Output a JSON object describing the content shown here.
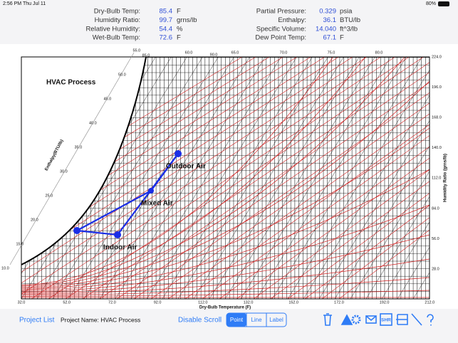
{
  "status_bar": {
    "time": "2:56 PM",
    "date": "Thu Jul 11",
    "battery": "80%"
  },
  "readings": {
    "left": [
      {
        "label": "Dry-Bulb Temp:",
        "value": "85.4",
        "unit": "F"
      },
      {
        "label": "Humidity Ratio:",
        "value": "99.7",
        "unit": "grns/lb"
      },
      {
        "label": "Relative Humidity:",
        "value": "54.4",
        "unit": "%"
      },
      {
        "label": "Wet-Bulb Temp:",
        "value": "72.6",
        "unit": "F"
      }
    ],
    "right": [
      {
        "label": "Partial Pressure:",
        "value": "0.329",
        "unit": "psia"
      },
      {
        "label": "Enthalpy:",
        "value": "36.1",
        "unit": "BTU/lb"
      },
      {
        "label": "Specific Volume:",
        "value": "14.040",
        "unit": "ft^3/lb"
      },
      {
        "label": "Dew Point Temp:",
        "value": "67.1",
        "unit": "F"
      }
    ]
  },
  "chart": {
    "title": "HVAC Process",
    "x_axis_label": "Dry-Bulb Temperature (F)",
    "y_axis_label": "Humidity Ratio (grns/lb)",
    "enthalpy_label": "Enthalpy(BTU/lb)",
    "x_ticks": [
      "32.0",
      "52.0",
      "72.0",
      "92.0",
      "112.0",
      "132.0",
      "152.0",
      "172.0",
      "192.0",
      "212.0"
    ],
    "y_ticks": [
      "28.0",
      "56.0",
      "84.0",
      "112.0",
      "140.0",
      "168.0",
      "196.0",
      "224.0"
    ],
    "enthalpy_ticks": [
      "10.0",
      "15.0",
      "20.0",
      "25.0",
      "30.0",
      "35.0",
      "40.0",
      "45.0",
      "50.0",
      "55.0"
    ],
    "top_labels": [
      "85.0",
      "60.0",
      "90.0",
      "65.0",
      "70.0",
      "75.0",
      "80.0"
    ],
    "points": [
      {
        "label": "Outdoor Air"
      },
      {
        "label": "Mixed Air"
      },
      {
        "label": "Indoor Air"
      }
    ]
  },
  "toolbar": {
    "project_list": "Project List",
    "project_name": "Project Name: HVAC Process",
    "disable_scroll": "Disable Scroll",
    "modes": [
      "Point",
      "Line",
      "Label"
    ],
    "shr": "SHR"
  }
}
